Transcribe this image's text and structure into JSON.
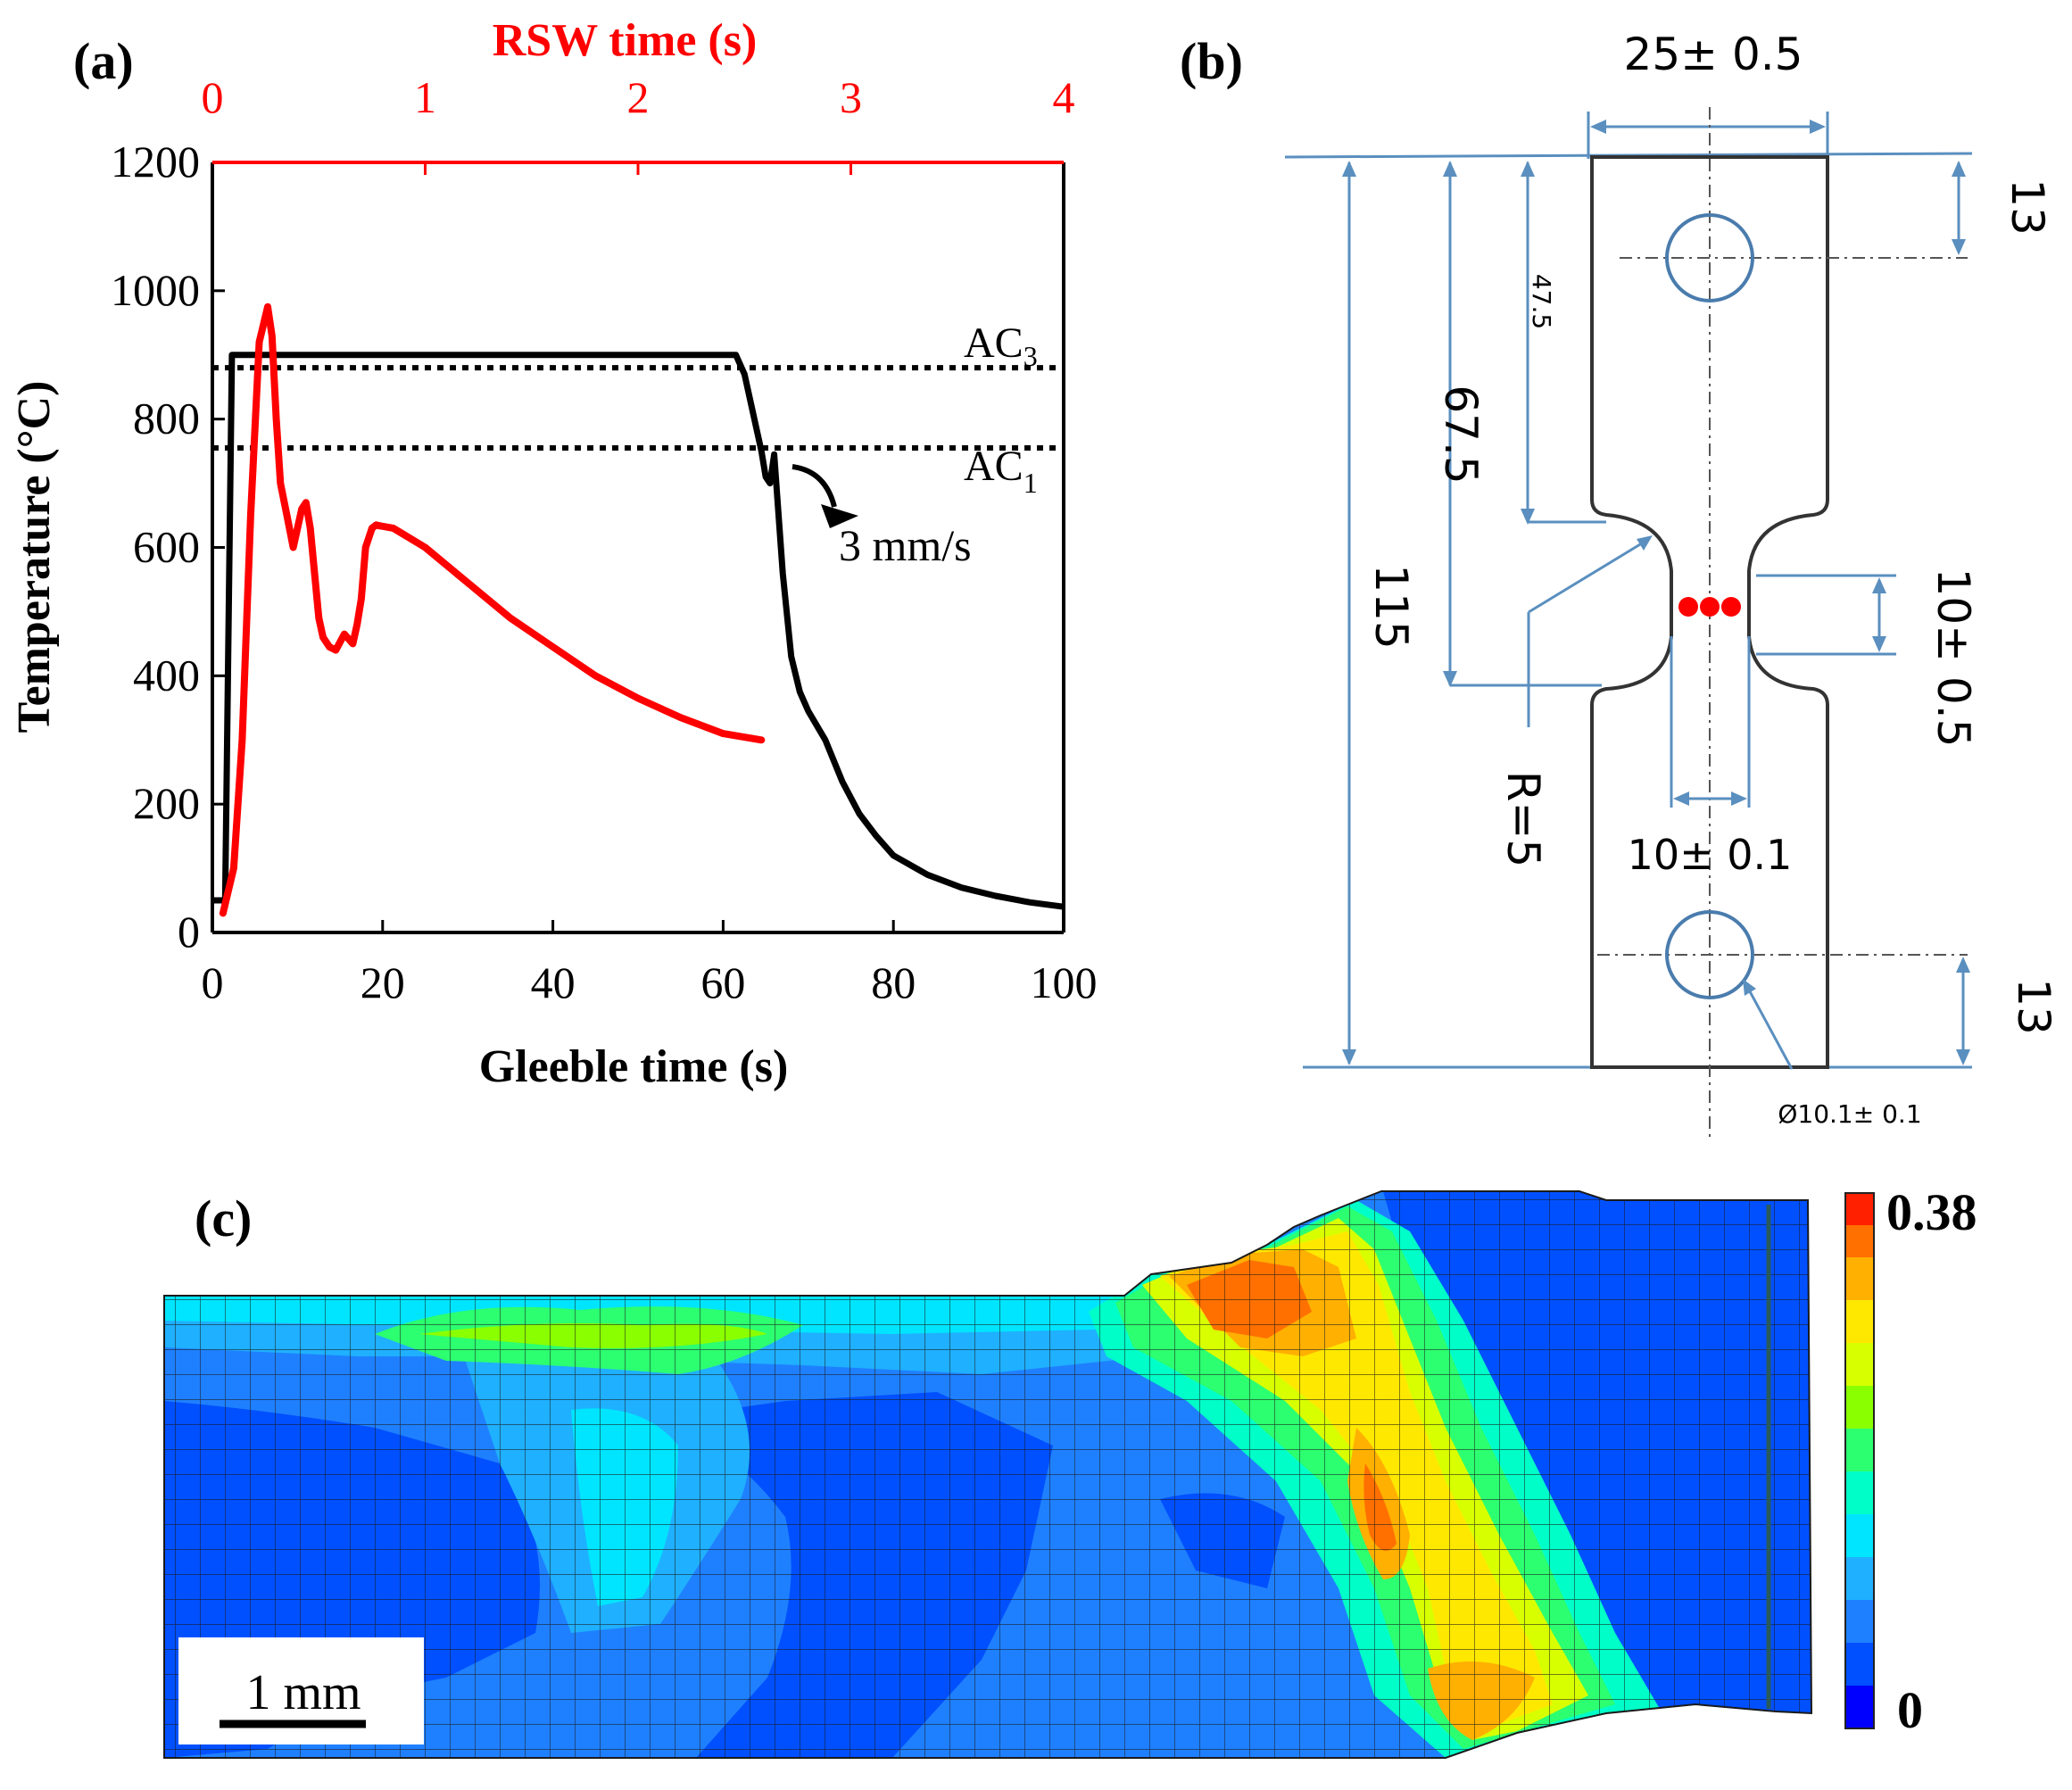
{
  "colors": {
    "rsw": "#ff0000",
    "gleeble": "#000000",
    "dim_line": "#5a8fbf",
    "outline": "#333333",
    "hole": "#4a7cad",
    "colormap": [
      "#0000ff",
      "#0050ff",
      "#1f80ff",
      "#1fb0ff",
      "#00e5ff",
      "#00ffc8",
      "#2cff70",
      "#8aff00",
      "#d8ff00",
      "#ffe800",
      "#ffb000",
      "#ff7000",
      "#ff2000"
    ]
  },
  "panel_a": {
    "label": "(a)",
    "annotation_ac3": "AC",
    "annotation_ac3_sub": "3",
    "annotation_ac1": "AC",
    "annotation_ac1_sub": "1",
    "annotation_rate": "3 mm/s"
  },
  "chart_data": {
    "type": "line",
    "title": "",
    "xlabel": "Gleeble time (s)",
    "ylabel": "Temperature (°C)",
    "x2label": "RSW time (s)",
    "xlim": [
      0,
      100
    ],
    "ylim": [
      0,
      1200
    ],
    "x2lim": [
      0,
      4
    ],
    "xticks": [
      "0",
      "20",
      "40",
      "60",
      "80",
      "100"
    ],
    "yticks": [
      "0",
      "200",
      "400",
      "600",
      "800",
      "1000",
      "1200"
    ],
    "x2ticks": [
      "0",
      "1",
      "2",
      "3",
      "4"
    ],
    "reference_lines": [
      {
        "name": "AC3",
        "y": 880
      },
      {
        "name": "AC1",
        "y": 755
      }
    ],
    "series": [
      {
        "name": "Gleeble",
        "axis": "bottom",
        "x": [
          0,
          1.5,
          2.3,
          3,
          10,
          20,
          30,
          40,
          50,
          61.5,
          62.5,
          63.5,
          64.5,
          65,
          65.5,
          66,
          67,
          68,
          69,
          70,
          72,
          74,
          76,
          78,
          80,
          84,
          88,
          92,
          96,
          100
        ],
        "y": [
          50,
          50,
          900,
          900,
          900,
          900,
          900,
          900,
          900,
          900,
          870,
          810,
          750,
          710,
          700,
          745,
          560,
          430,
          375,
          345,
          300,
          235,
          185,
          150,
          120,
          90,
          70,
          57,
          47,
          40
        ]
      },
      {
        "name": "RSW",
        "axis": "top",
        "x": [
          0.05,
          0.1,
          0.14,
          0.18,
          0.22,
          0.26,
          0.28,
          0.3,
          0.32,
          0.35,
          0.38,
          0.42,
          0.44,
          0.46,
          0.48,
          0.5,
          0.52,
          0.55,
          0.58,
          0.62,
          0.66,
          0.68,
          0.7,
          0.72,
          0.75,
          0.77,
          0.78,
          0.8,
          0.85,
          0.9,
          1.0,
          1.2,
          1.4,
          1.6,
          1.8,
          2.0,
          2.2,
          2.4,
          2.58
        ],
        "y": [
          30,
          100,
          300,
          650,
          920,
          975,
          930,
          800,
          700,
          650,
          600,
          660,
          670,
          630,
          560,
          490,
          460,
          445,
          440,
          465,
          450,
          480,
          520,
          600,
          630,
          635,
          634,
          633,
          630,
          620,
          600,
          545,
          490,
          445,
          400,
          365,
          335,
          310,
          300
        ]
      }
    ]
  },
  "panel_b": {
    "label": "(b)",
    "dim_width": "25± 0.5",
    "dim_top": "13",
    "dim_bottom": "13",
    "dim_47": "47.5",
    "dim_67": "67.5",
    "dim_115": "115",
    "dim_notch_height": "10± 0.5",
    "dim_gauge_width": "10± 0.1",
    "dim_radius": "R=5",
    "dim_hole": "Ø10.1± 0.1"
  },
  "panel_c": {
    "label": "(c)",
    "colorbar_max": "0.38",
    "colorbar_min": "0",
    "scale_bar": "1 mm"
  }
}
